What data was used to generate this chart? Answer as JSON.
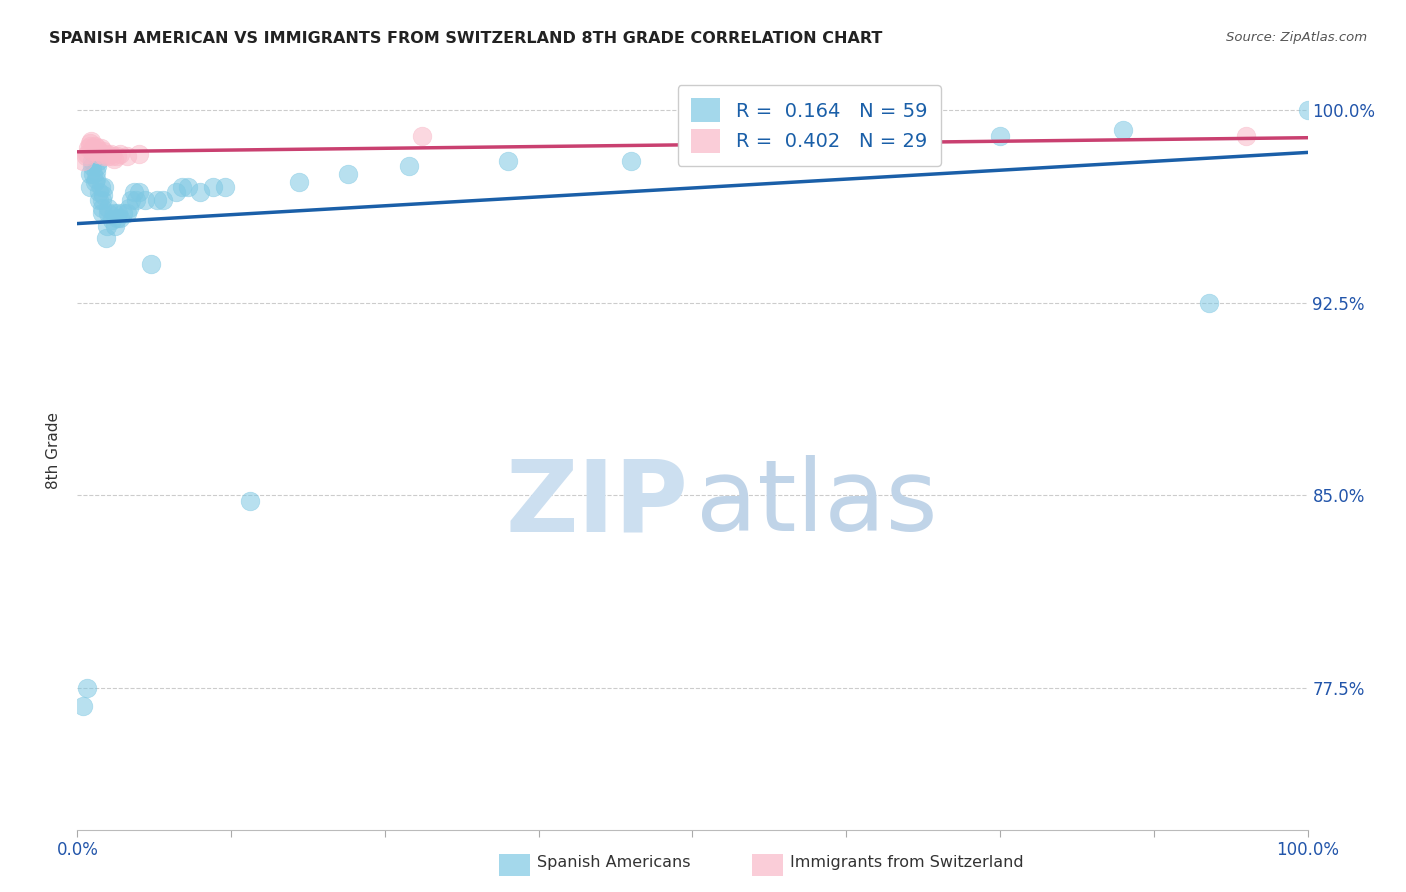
{
  "title": "SPANISH AMERICAN VS IMMIGRANTS FROM SWITZERLAND 8TH GRADE CORRELATION CHART",
  "source": "Source: ZipAtlas.com",
  "ylabel": "8th Grade",
  "ytick_labels": [
    "77.5%",
    "85.0%",
    "92.5%",
    "100.0%"
  ],
  "ytick_values": [
    0.775,
    0.85,
    0.925,
    1.0
  ],
  "xlim": [
    0.0,
    1.0
  ],
  "ylim": [
    0.72,
    1.015
  ],
  "blue_R": 0.164,
  "blue_N": 59,
  "pink_R": 0.402,
  "pink_N": 29,
  "blue_color": "#7ec8e3",
  "pink_color": "#f9b8c8",
  "trend_blue": "#1a5fa8",
  "trend_pink": "#c94070",
  "legend_label_blue": "Spanish Americans",
  "legend_label_pink": "Immigrants from Switzerland",
  "blue_scatter_x": [
    0.005,
    0.008,
    0.01,
    0.01,
    0.012,
    0.012,
    0.013,
    0.014,
    0.015,
    0.015,
    0.016,
    0.017,
    0.018,
    0.018,
    0.019,
    0.02,
    0.02,
    0.02,
    0.021,
    0.022,
    0.023,
    0.024,
    0.025,
    0.025,
    0.028,
    0.03,
    0.031,
    0.032,
    0.033,
    0.035,
    0.037,
    0.04,
    0.042,
    0.044,
    0.046,
    0.048,
    0.05,
    0.055,
    0.06,
    0.065,
    0.07,
    0.08,
    0.085,
    0.09,
    0.1,
    0.11,
    0.12,
    0.14,
    0.18,
    0.22,
    0.27,
    0.35,
    0.45,
    0.55,
    0.65,
    0.75,
    0.85,
    0.92,
    1.0
  ],
  "blue_scatter_y": [
    0.768,
    0.775,
    0.97,
    0.975,
    0.978,
    0.98,
    0.975,
    0.972,
    0.973,
    0.976,
    0.978,
    0.98,
    0.965,
    0.968,
    0.97,
    0.96,
    0.962,
    0.965,
    0.967,
    0.97,
    0.95,
    0.955,
    0.96,
    0.962,
    0.957,
    0.96,
    0.955,
    0.958,
    0.96,
    0.958,
    0.96,
    0.96,
    0.962,
    0.965,
    0.968,
    0.965,
    0.968,
    0.965,
    0.94,
    0.965,
    0.965,
    0.968,
    0.97,
    0.97,
    0.968,
    0.97,
    0.97,
    0.848,
    0.972,
    0.975,
    0.978,
    0.98,
    0.98,
    0.985,
    0.988,
    0.99,
    0.992,
    0.925,
    1.0
  ],
  "pink_scatter_x": [
    0.005,
    0.007,
    0.008,
    0.009,
    0.01,
    0.01,
    0.011,
    0.012,
    0.013,
    0.014,
    0.015,
    0.016,
    0.017,
    0.018,
    0.019,
    0.02,
    0.021,
    0.022,
    0.024,
    0.025,
    0.027,
    0.028,
    0.03,
    0.032,
    0.035,
    0.04,
    0.05,
    0.28,
    0.95
  ],
  "pink_scatter_y": [
    0.98,
    0.982,
    0.983,
    0.985,
    0.986,
    0.987,
    0.988,
    0.984,
    0.985,
    0.986,
    0.984,
    0.985,
    0.983,
    0.984,
    0.985,
    0.983,
    0.984,
    0.982,
    0.983,
    0.982,
    0.983,
    0.982,
    0.981,
    0.982,
    0.983,
    0.982,
    0.983,
    0.99,
    0.99
  ]
}
